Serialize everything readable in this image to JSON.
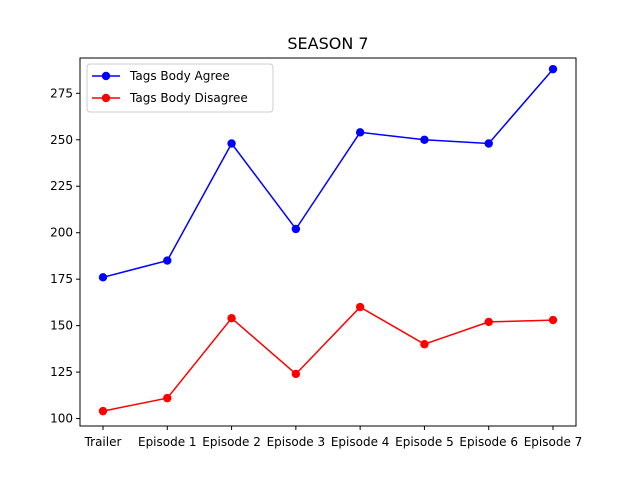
{
  "chart_data": {
    "type": "line",
    "title": "SEASON 7",
    "xlabel": "",
    "ylabel": "",
    "categories": [
      "Trailer",
      "Episode 1",
      "Episode 2",
      "Episode 3",
      "Episode 4",
      "Episode 5",
      "Episode 6",
      "Episode 7"
    ],
    "ylim": [
      96,
      294
    ],
    "yticks": [
      100,
      125,
      150,
      175,
      200,
      225,
      250,
      275
    ],
    "grid": false,
    "legend_position": "top-left",
    "series": [
      {
        "name": "Tags Body Agree",
        "color": "#0000ff",
        "values": [
          176,
          185,
          248,
          202,
          254,
          250,
          248,
          288
        ]
      },
      {
        "name": "Tags Body Disagree",
        "color": "#ff0000",
        "values": [
          104,
          111,
          154,
          124,
          160,
          140,
          152,
          153
        ]
      }
    ]
  }
}
